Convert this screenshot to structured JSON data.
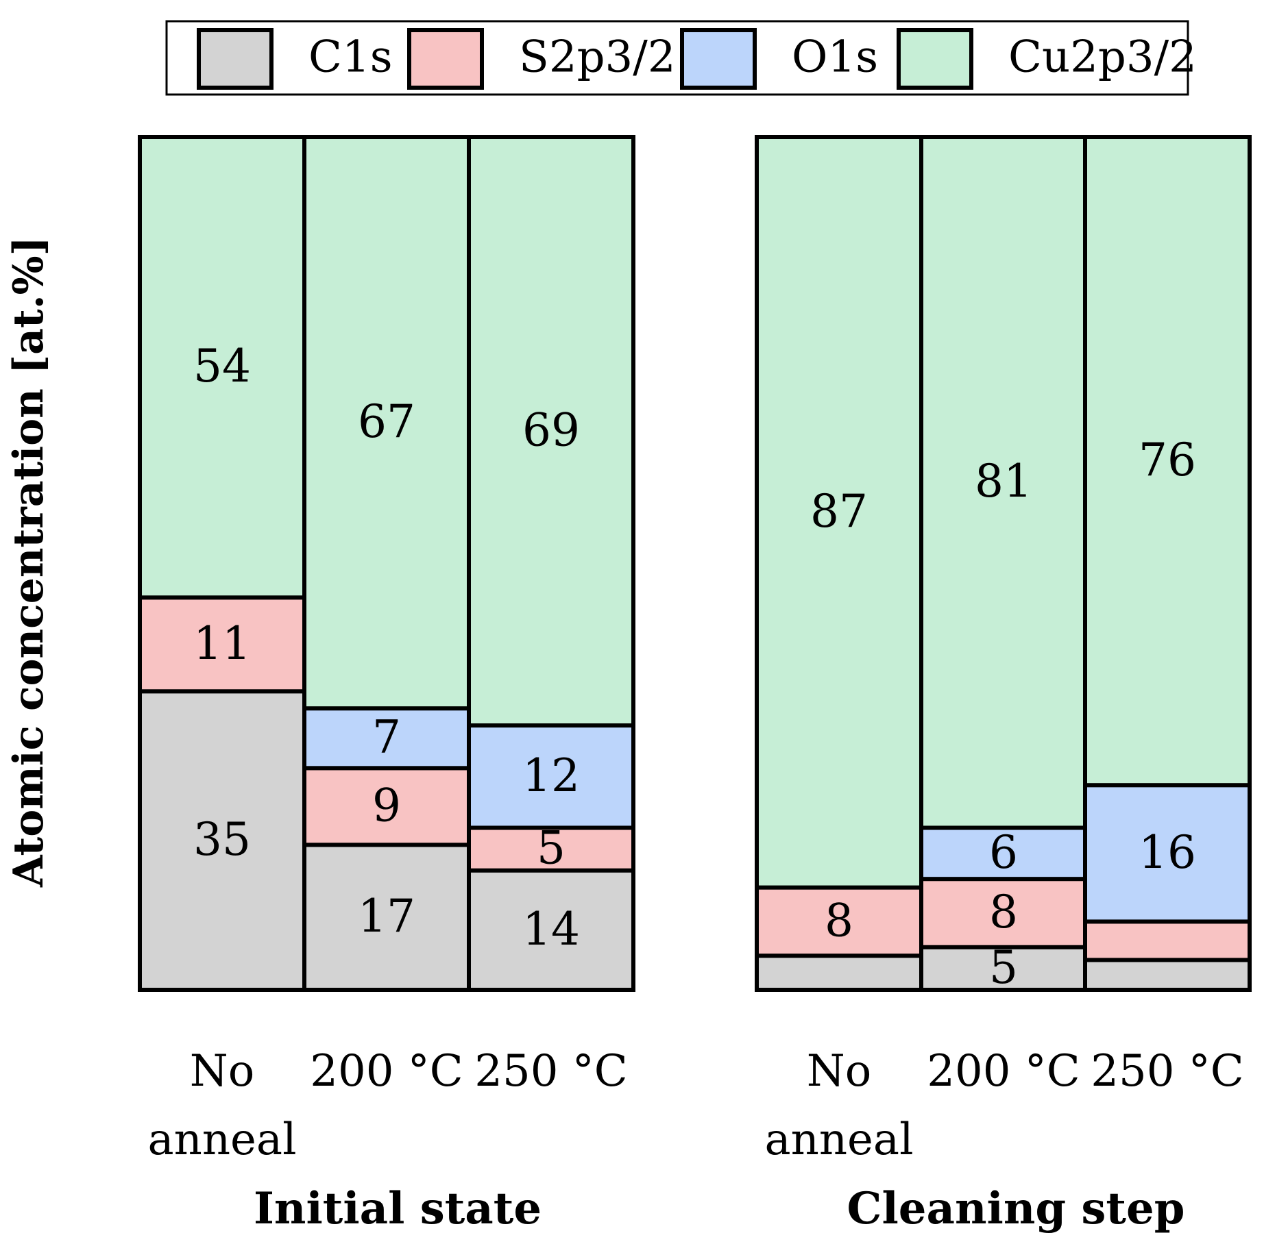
{
  "chart_data": {
    "type": "bar",
    "stacked": true,
    "ylabel": "Atomic concentration [at.%]",
    "ylim": [
      0,
      100
    ],
    "legend_position": "top",
    "series_order": [
      "C1s",
      "S2p3/2",
      "O1s",
      "Cu2p3/2"
    ],
    "legend": [
      {
        "name": "C1s",
        "color": "#d3d3d3"
      },
      {
        "name": "S2p3/2",
        "color": "#f8c3c3"
      },
      {
        "name": "O1s",
        "color": "#bcd5fb"
      },
      {
        "name": "Cu2p3/2",
        "color": "#c6eed6"
      }
    ],
    "groups": [
      {
        "label": "Initial state",
        "bars": [
          {
            "line1": "No",
            "line2": "anneal",
            "segments": [
              {
                "series": "C1s",
                "value": 35,
                "label": "35"
              },
              {
                "series": "S2p3/2",
                "value": 11,
                "label": "11"
              },
              {
                "series": "O1s",
                "value": 0,
                "label": ""
              },
              {
                "series": "Cu2p3/2",
                "value": 54,
                "label": "54"
              }
            ]
          },
          {
            "line1": "200 °C",
            "line2": "",
            "segments": [
              {
                "series": "C1s",
                "value": 17,
                "label": "17"
              },
              {
                "series": "S2p3/2",
                "value": 9,
                "label": "9"
              },
              {
                "series": "O1s",
                "value": 7,
                "label": "7"
              },
              {
                "series": "Cu2p3/2",
                "value": 67,
                "label": "67"
              }
            ]
          },
          {
            "line1": "250 °C",
            "line2": "",
            "segments": [
              {
                "series": "C1s",
                "value": 14,
                "label": "14"
              },
              {
                "series": "S2p3/2",
                "value": 5,
                "label": "5"
              },
              {
                "series": "O1s",
                "value": 12,
                "label": "12"
              },
              {
                "series": "Cu2p3/2",
                "value": 69,
                "label": "69"
              }
            ]
          }
        ]
      },
      {
        "label": "Cleaning step",
        "bars": [
          {
            "line1": "No",
            "line2": "anneal",
            "segments": [
              {
                "series": "C1s",
                "value": 4,
                "label": ""
              },
              {
                "series": "S2p3/2",
                "value": 8,
                "label": "8"
              },
              {
                "series": "O1s",
                "value": 0,
                "label": ""
              },
              {
                "series": "Cu2p3/2",
                "value": 87,
                "label": "87"
              }
            ]
          },
          {
            "line1": "200 °C",
            "line2": "",
            "segments": [
              {
                "series": "C1s",
                "value": 5,
                "label": "5"
              },
              {
                "series": "S2p3/2",
                "value": 8,
                "label": "8"
              },
              {
                "series": "O1s",
                "value": 6,
                "label": "6"
              },
              {
                "series": "Cu2p3/2",
                "value": 81,
                "label": "81"
              }
            ]
          },
          {
            "line1": "250 °C",
            "line2": "",
            "segments": [
              {
                "series": "C1s",
                "value": 3.5,
                "label": ""
              },
              {
                "series": "S2p3/2",
                "value": 4.5,
                "label": ""
              },
              {
                "series": "O1s",
                "value": 16,
                "label": "16"
              },
              {
                "series": "Cu2p3/2",
                "value": 76,
                "label": "76"
              }
            ]
          }
        ]
      }
    ]
  }
}
